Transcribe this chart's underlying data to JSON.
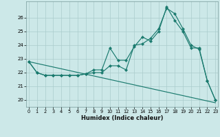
{
  "xlabel": "Humidex (Indice chaleur)",
  "bg_color": "#cce8e8",
  "grid_color": "#aacccc",
  "line_color": "#1a7a6e",
  "line1_x": [
    0,
    1,
    2,
    3,
    4,
    5,
    6,
    7,
    8,
    9,
    10,
    11,
    12,
    13,
    14,
    15,
    16,
    17,
    18,
    19,
    20,
    21,
    22,
    23
  ],
  "line1_y": [
    22.8,
    22.0,
    21.8,
    21.8,
    21.8,
    21.8,
    21.8,
    21.9,
    22.2,
    22.2,
    23.8,
    22.9,
    22.9,
    23.9,
    24.6,
    24.3,
    25.0,
    26.8,
    25.8,
    25.0,
    23.8,
    23.8,
    21.4,
    20.0
  ],
  "line2_x": [
    0,
    1,
    2,
    3,
    4,
    5,
    6,
    7,
    8,
    9,
    10,
    11,
    12,
    13,
    14,
    15,
    16,
    17,
    18,
    19,
    20,
    21,
    22,
    23
  ],
  "line2_y": [
    22.8,
    22.0,
    21.8,
    21.8,
    21.8,
    21.8,
    21.8,
    21.9,
    22.0,
    22.0,
    22.5,
    22.5,
    22.2,
    24.0,
    24.1,
    24.5,
    25.2,
    26.7,
    26.3,
    25.2,
    24.0,
    23.7,
    21.4,
    20.0
  ],
  "line3_x": [
    0,
    23
  ],
  "line3_y": [
    22.8,
    19.8
  ],
  "xlim": [
    -0.3,
    23.3
  ],
  "ylim": [
    19.5,
    27.2
  ],
  "yticks": [
    20,
    21,
    22,
    23,
    24,
    25,
    26
  ],
  "xticks": [
    0,
    1,
    2,
    3,
    4,
    5,
    6,
    7,
    8,
    9,
    10,
    11,
    12,
    13,
    14,
    15,
    16,
    17,
    18,
    19,
    20,
    21,
    22,
    23
  ]
}
